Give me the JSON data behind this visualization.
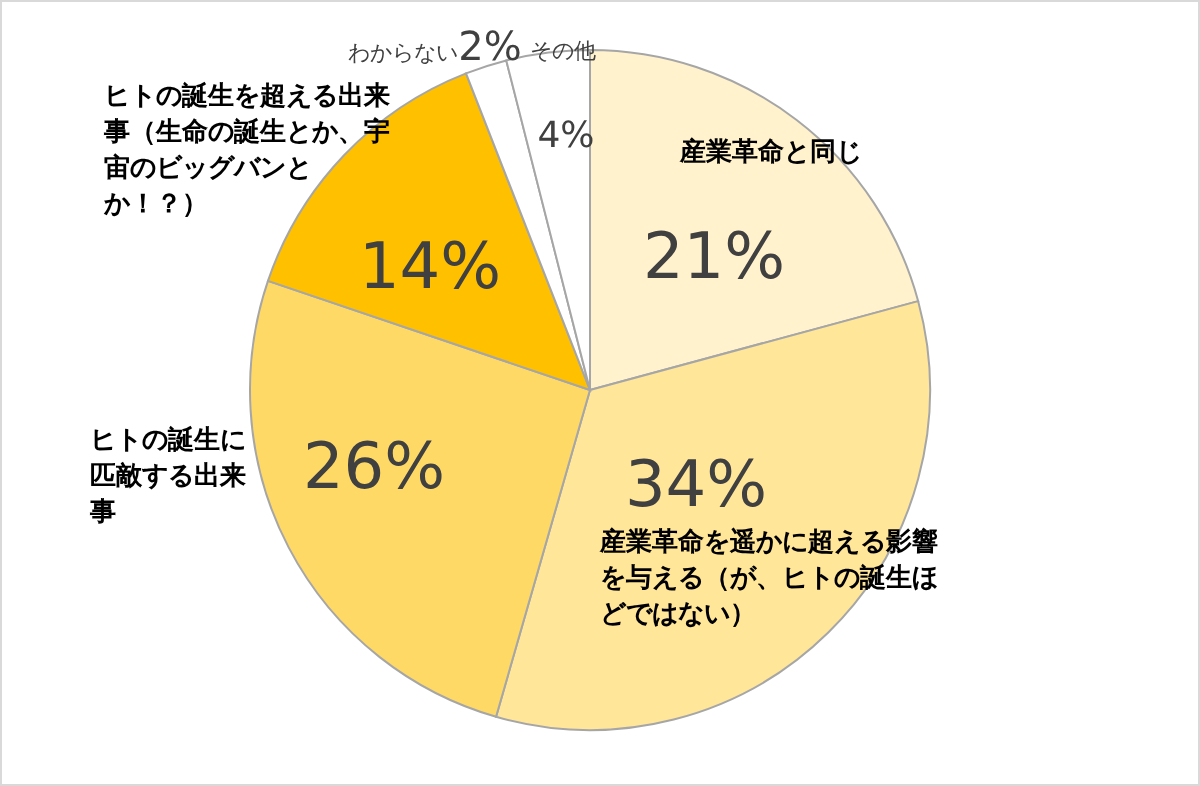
{
  "chart_data": {
    "type": "pie",
    "categories": [
      "産業革命と同じ",
      "産業革命を遥かに超える影響を与える（が、ヒトの誕生ほどではない）",
      "ヒトの誕生に匹敵する出来事",
      "ヒトの誕生を超える出来事（生命の誕生とか、宇宙のビッグバンとか！？）",
      "わからない",
      "その他"
    ],
    "values": [
      21,
      34,
      26,
      14,
      2,
      4
    ],
    "value_labels": [
      "21%",
      "34%",
      "26%",
      "14%",
      "2%",
      "4%"
    ],
    "colors": [
      "#fff2cc",
      "#ffe699",
      "#ffd966",
      "#ffc000",
      "#ffffff",
      "#ffffff"
    ]
  }
}
